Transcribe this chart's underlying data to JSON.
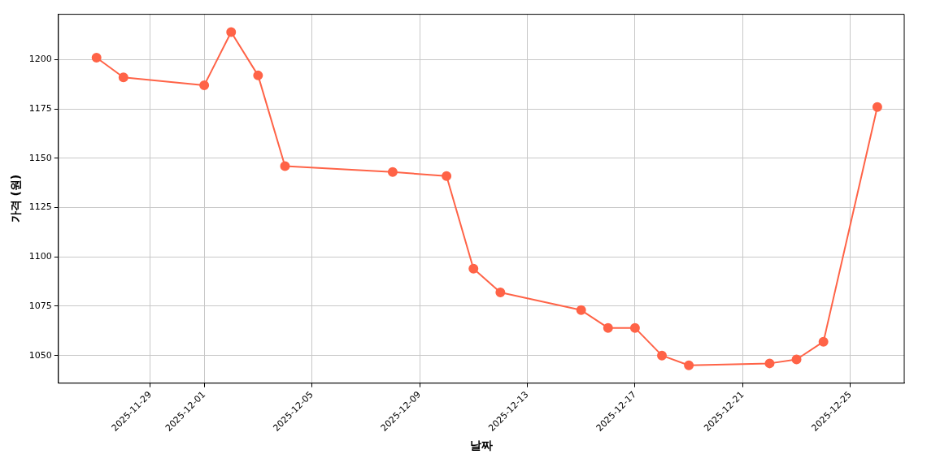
{
  "chart_data": {
    "type": "line",
    "xlabel": "날짜",
    "ylabel": "가격 (원)",
    "x": [
      "2025-11-27",
      "2025-11-28",
      "2025-12-01",
      "2025-12-02",
      "2025-12-03",
      "2025-12-04",
      "2025-12-08",
      "2025-12-10",
      "2025-12-11",
      "2025-12-12",
      "2025-12-15",
      "2025-12-16",
      "2025-12-17",
      "2025-12-18",
      "2025-12-19",
      "2025-12-22",
      "2025-12-23",
      "2025-12-24",
      "2025-12-26"
    ],
    "series": [
      {
        "color": "#ff6347",
        "values": [
          1201,
          1191,
          1187,
          1214,
          1192,
          1146,
          1143,
          1141,
          1094,
          1082,
          1073,
          1064,
          1064,
          1050,
          1045,
          1046,
          1048,
          1057,
          1176
        ]
      }
    ],
    "xlim": [
      "2025-11-25T14:00",
      "2025-12-27T00:00"
    ],
    "xticks": [
      "2025-11-29",
      "2025-12-01",
      "2025-12-05",
      "2025-12-09",
      "2025-12-13",
      "2025-12-17",
      "2025-12-21",
      "2025-12-25"
    ],
    "ylim": [
      1036,
      1223
    ],
    "yticks": [
      1050,
      1075,
      1100,
      1125,
      1150,
      1175,
      1200
    ],
    "grid": true,
    "marker": "circle",
    "line_style": "solid",
    "legend": false
  }
}
